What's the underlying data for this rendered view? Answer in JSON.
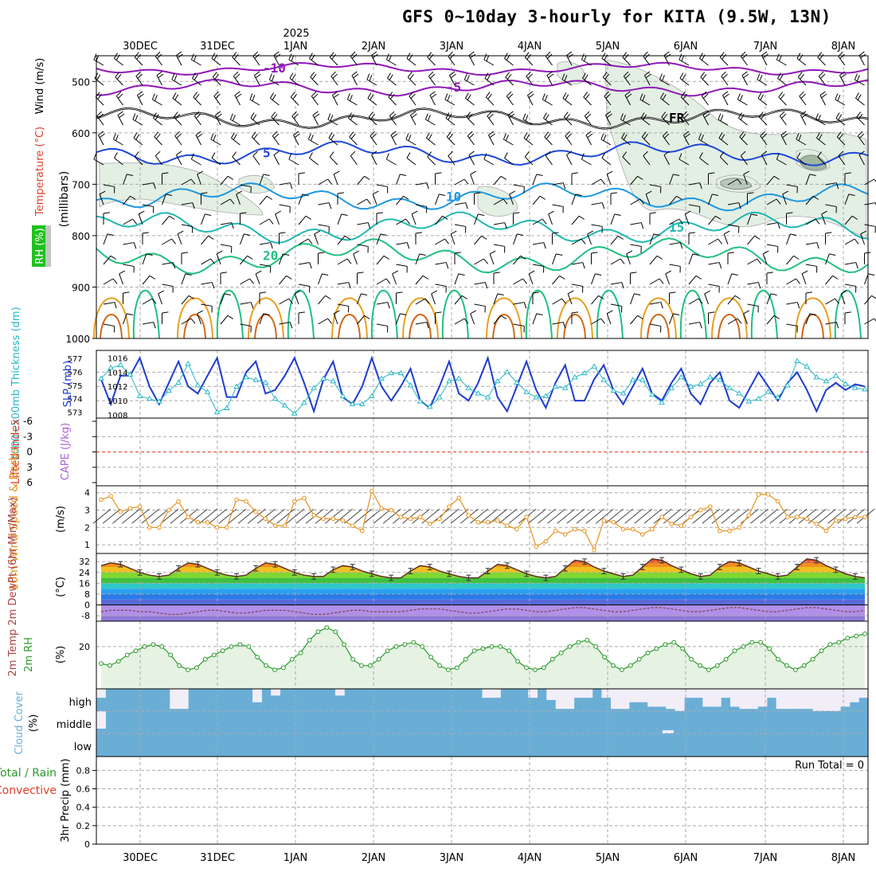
{
  "title": "GFS 0~10day 3-hourly for KITA (9.5W, 13N)",
  "colors": {
    "wind_label": "#000000",
    "temp_label": "#e0402a",
    "rh_label": "#2a9a2a",
    "slp": "#1e3ccf",
    "thickness": "#28b8c8",
    "lifted": "#e0402a",
    "cape": "#b060d8",
    "wind10": "#e8901a",
    "rh2m": "#2a9a2a",
    "cloud": "#6aaed6",
    "precip_total": "#2a9a2a",
    "precip_conv": "#e0402a"
  },
  "chart_data": [
    {
      "panel": "upper-air",
      "type": "contour",
      "ylabel_parts": [
        "Wind (m/s)",
        "Temperature (°C)",
        "RH (%)"
      ],
      "ylabel_units": "(millibars)",
      "y_ticks": [
        500,
        600,
        700,
        800,
        900,
        1000
      ],
      "ylim": [
        450,
        1000
      ],
      "top_dates": [
        "30DEC",
        "31DEC",
        "1JAN",
        "2JAN",
        "3JAN",
        "4JAN",
        "5JAN",
        "6JAN",
        "7JAN",
        "8JAN"
      ],
      "year_label": "2025",
      "isotherms": [
        {
          "label": "-10",
          "level": 475,
          "color": "#9018b8"
        },
        {
          "label": "-5",
          "level": 512,
          "color": "#9018b8"
        },
        {
          "label": "FR",
          "level": 572,
          "color": "#000000"
        },
        {
          "label": "5",
          "level": 640,
          "color": "#1e48d8"
        },
        {
          "label": "10",
          "level": 725,
          "color": "#1e98e0"
        },
        {
          "label": "15",
          "level": 785,
          "color": "#20b8b0"
        },
        {
          "label": "20",
          "level": 840,
          "color": "#20c080"
        }
      ]
    },
    {
      "panel": "slp-thickness",
      "type": "line",
      "label_left": "1000~500mb Thickness (dm)",
      "label_right": "SLP (mb)",
      "thickness_ticks": [
        573,
        574,
        575,
        576,
        577
      ],
      "slp_ticks": [
        1008,
        1010,
        1012,
        1014,
        1016
      ],
      "series": [
        {
          "name": "SLP",
          "values": [
            1013,
            1009.5,
            1013.5,
            1013.5,
            1016,
            1012,
            1009.5,
            1012.5,
            1015.5,
            1012,
            1011,
            1013.5,
            1016,
            1010.5,
            1010.5,
            1014,
            1015.5,
            1011,
            1011.5,
            1013.5,
            1016,
            1012.5,
            1008.5,
            1013,
            1015.5,
            1010.5,
            1009.5,
            1012,
            1016,
            1012,
            1010,
            1012,
            1014.5,
            1010,
            1009,
            1012,
            1015.5,
            1011,
            1010,
            1012.5,
            1016,
            1010.5,
            1008.5,
            1012,
            1015.5,
            1011.5,
            1009,
            1012.5,
            1015,
            1010,
            1010,
            1013,
            1015,
            1011.5,
            1009.5,
            1012,
            1014.5,
            1011,
            1010,
            1012.5,
            1014.5,
            1011,
            1009.5,
            1012.5,
            1014,
            1010,
            1009,
            1011.5,
            1014,
            1012,
            1010,
            1012.5,
            1014,
            1011.5,
            1008.5,
            1011.5,
            1012.5,
            1011.5,
            1012.3,
            1012
          ]
        },
        {
          "name": "Thickness",
          "values": [
            575.5,
            576.3,
            576.5,
            575.8,
            574.2,
            574,
            573.8,
            574.6,
            575.2,
            576.6,
            575,
            574.5,
            573,
            573.3,
            574.9,
            575.6,
            575.4,
            575.2,
            574,
            573.5,
            572.9,
            573.7,
            574.8,
            575.5,
            575.3,
            574.2,
            573.6,
            573.6,
            574.2,
            575.5,
            575.9,
            575.9,
            575,
            573.8,
            573.4,
            574.1,
            575.3,
            575.5,
            574.8,
            574.4,
            574.1,
            575.3,
            576,
            575.2,
            574.5,
            574.1,
            574.2,
            574.9,
            574.8,
            575.6,
            575.9,
            576.4,
            575.4,
            574.6,
            574.4,
            575.4,
            575.4,
            574.3,
            573.7,
            574.8,
            575.6,
            574.9,
            575.1,
            575.6,
            575.4,
            574.8,
            574.4,
            573.8,
            574,
            574.5,
            574.1,
            575,
            576.8,
            576.4,
            575.6,
            575.3,
            575.7,
            575.1,
            574.8,
            574.7
          ]
        }
      ]
    },
    {
      "panel": "lifted-cape",
      "type": "line",
      "label_left": "Lifted Index",
      "label_right": "CAPE (J/kg)",
      "li_ticks": [
        "-6",
        "-3",
        "0",
        "3",
        "6"
      ],
      "series": [
        {
          "name": "Lifted Index zero line",
          "values": [
            0
          ]
        }
      ]
    },
    {
      "panel": "wind10m",
      "type": "line",
      "label_left": "10m Wind Speed & Barbs",
      "label_right": "(m/s)",
      "yticks": [
        1,
        2,
        3,
        4
      ],
      "ylim": [
        0.5,
        4.4
      ],
      "series": [
        {
          "name": "10m Wind Speed",
          "values": [
            3.6,
            3.8,
            2.9,
            3.1,
            3.2,
            2,
            2,
            3,
            3.5,
            2.6,
            2.3,
            2.3,
            2,
            2,
            3.6,
            3.5,
            2.9,
            2.5,
            2.1,
            2.1,
            3.5,
            3.7,
            2.7,
            2.5,
            2.5,
            2.4,
            2.1,
            1.8,
            4.1,
            3.1,
            3,
            2.6,
            2.5,
            2.6,
            2.2,
            2.5,
            3.2,
            3.7,
            2.7,
            2.3,
            2.3,
            2.4,
            2.1,
            1.9,
            2.6,
            0.9,
            1.2,
            1.8,
            1.6,
            1.9,
            1.8,
            0.7,
            2.4,
            2.3,
            1.9,
            1.9,
            1.6,
            1.9,
            2.6,
            2.2,
            2.1,
            2.6,
            3,
            3.2,
            1.8,
            1.8,
            2,
            2.7,
            3.9,
            3.9,
            3.5,
            2.6,
            2.6,
            2.5,
            2.2,
            1.8,
            2.4,
            2.5,
            2.6,
            2.6
          ]
        }
      ]
    },
    {
      "panel": "temperature-2m",
      "type": "area",
      "label_left": "2m Temp 2m DewPt (6hr Min/Max)",
      "label_right": "(°C)",
      "yticks": [
        -8,
        0,
        8,
        16,
        24,
        32
      ],
      "ylim": [
        -12,
        38
      ],
      "series": [
        {
          "name": "2m Temp",
          "values": [
            29,
            31,
            30,
            27,
            24,
            22,
            21,
            22,
            27,
            31,
            30,
            27,
            24,
            22,
            21,
            22,
            27,
            31,
            30,
            27,
            24,
            22,
            21,
            21,
            26,
            29,
            28,
            25,
            23,
            21,
            20,
            20,
            25,
            29,
            28,
            25,
            23,
            21,
            20,
            20,
            25,
            30,
            29,
            26,
            23,
            21,
            20,
            21,
            27,
            33,
            32,
            28,
            25,
            23,
            21,
            22,
            28,
            34,
            33,
            29,
            26,
            23,
            21,
            22,
            28,
            32,
            31,
            28,
            25,
            23,
            21,
            22,
            28,
            34,
            33,
            29,
            26,
            23,
            21,
            20
          ]
        },
        {
          "name": "2m DewPt",
          "values": [
            -5,
            -4,
            -4,
            -4,
            -5,
            -5,
            -6,
            -7,
            -7,
            -6,
            -5,
            -4,
            -4,
            -5,
            -6,
            -6,
            -5,
            -4,
            -4,
            -4,
            -5,
            -6,
            -7,
            -7,
            -6,
            -5,
            -4,
            -4,
            -5,
            -5,
            -5,
            -5,
            -4,
            -3,
            -3,
            -3,
            -4,
            -5,
            -6,
            -6,
            -5,
            -4,
            -3,
            -3,
            -4,
            -5,
            -5,
            -4,
            -3,
            -2,
            -2,
            -3,
            -4,
            -5,
            -5,
            -4,
            -3,
            -2,
            -2,
            -3,
            -4,
            -5,
            -5,
            -4,
            -3,
            -2,
            -2,
            -3,
            -4,
            -5,
            -5,
            -4,
            -3,
            -2,
            -2,
            -3,
            -4,
            -5,
            -5,
            -4
          ]
        }
      ]
    },
    {
      "panel": "rh-2m",
      "type": "area",
      "label_left": "2m RH",
      "label_right": "(%)",
      "yticks": [
        20
      ],
      "ylim": [
        0,
        32
      ],
      "series": [
        {
          "name": "2m RH",
          "values": [
            12,
            11,
            13,
            16,
            18,
            20,
            21,
            20,
            16,
            11,
            9,
            10,
            14,
            16,
            18,
            20,
            21,
            20,
            15,
            11,
            9,
            10,
            14,
            17,
            23,
            27,
            29,
            27,
            21,
            14,
            11,
            11,
            14,
            18,
            20,
            21,
            22,
            20,
            15,
            11,
            9,
            10,
            14,
            18,
            19,
            20,
            20,
            18,
            13,
            10,
            9,
            10,
            14,
            17,
            20,
            22,
            23,
            20,
            15,
            11,
            9,
            11,
            14,
            17,
            19,
            21,
            22,
            19,
            14,
            11,
            9,
            11,
            14,
            18,
            20,
            22,
            22,
            19,
            14,
            11,
            9,
            11,
            14,
            18,
            21,
            22,
            24,
            25,
            26
          ]
        }
      ]
    },
    {
      "panel": "cloud-cover",
      "type": "bar",
      "label_left": "Cloud Cover",
      "label_right": "(%)",
      "levels": [
        "high",
        "middle",
        "low"
      ],
      "high_cover": [
        0.6,
        1,
        1,
        1,
        1,
        1,
        1,
        1,
        0.1,
        0.1,
        1,
        1,
        1,
        1,
        1,
        1,
        1,
        0.4,
        1,
        0.7,
        1,
        1,
        1,
        1,
        1,
        1,
        0.7,
        1,
        1,
        1,
        1,
        1,
        1,
        1,
        1,
        1,
        1,
        1,
        1,
        1,
        1,
        1,
        0.6,
        0.6,
        1,
        1,
        1,
        0.6,
        1,
        0.5,
        0.1,
        0.1,
        0.6,
        0.6,
        1,
        0.6,
        0.1,
        0.1,
        0.4,
        0.4,
        0.2,
        0.2,
        0.1,
        0,
        0.6,
        0.6,
        0.2,
        0.2,
        0.6,
        0.2,
        0.1,
        0.1,
        0.2,
        0.6,
        0.1,
        0.1,
        0.1,
        0.1,
        0,
        0,
        0,
        0.2,
        0.4,
        0.6
      ]
    },
    {
      "panel": "precip-3hr",
      "type": "bar",
      "label_left": "Total / Rain Convective",
      "label_right": "3hr Precip (mm)",
      "yticks": [
        0,
        0.2,
        0.4,
        0.6,
        0.8
      ],
      "ylim": [
        0,
        0.95
      ],
      "run_total": "Run Total = 0",
      "values": [
        0
      ],
      "bottom_dates": [
        "30DEC",
        "31DEC",
        "1JAN",
        "2JAN",
        "3JAN",
        "4JAN",
        "5JAN",
        "6JAN",
        "7JAN",
        "8JAN"
      ]
    }
  ]
}
